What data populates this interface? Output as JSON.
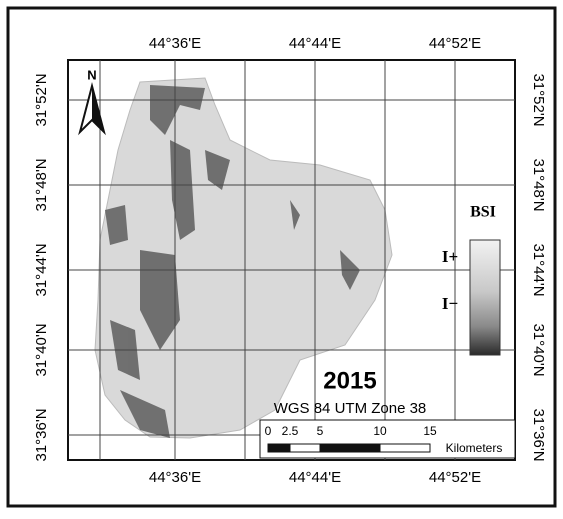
{
  "map": {
    "top_labels": [
      "44°36'E",
      "44°44'E",
      "44°52'E"
    ],
    "bottom_labels": [
      "44°36'E",
      "44°44'E",
      "44°52'E"
    ],
    "left_labels": [
      "31°52'N",
      "31°48'N",
      "31°44'N",
      "31°40'N",
      "31°36'N"
    ],
    "right_labels": [
      "31°52'N",
      "31°48'N",
      "31°44'N",
      "31°40'N",
      "31°36'N"
    ],
    "north": "N",
    "legend": {
      "title": "BSI",
      "high": "I+",
      "low": "I−"
    },
    "year": "2015",
    "projection": "WGS 84 UTM Zone 38",
    "scale_bar": {
      "ticks": [
        "0",
        "2.5",
        "5",
        "10",
        "15"
      ],
      "unit": "Kilometers"
    }
  }
}
